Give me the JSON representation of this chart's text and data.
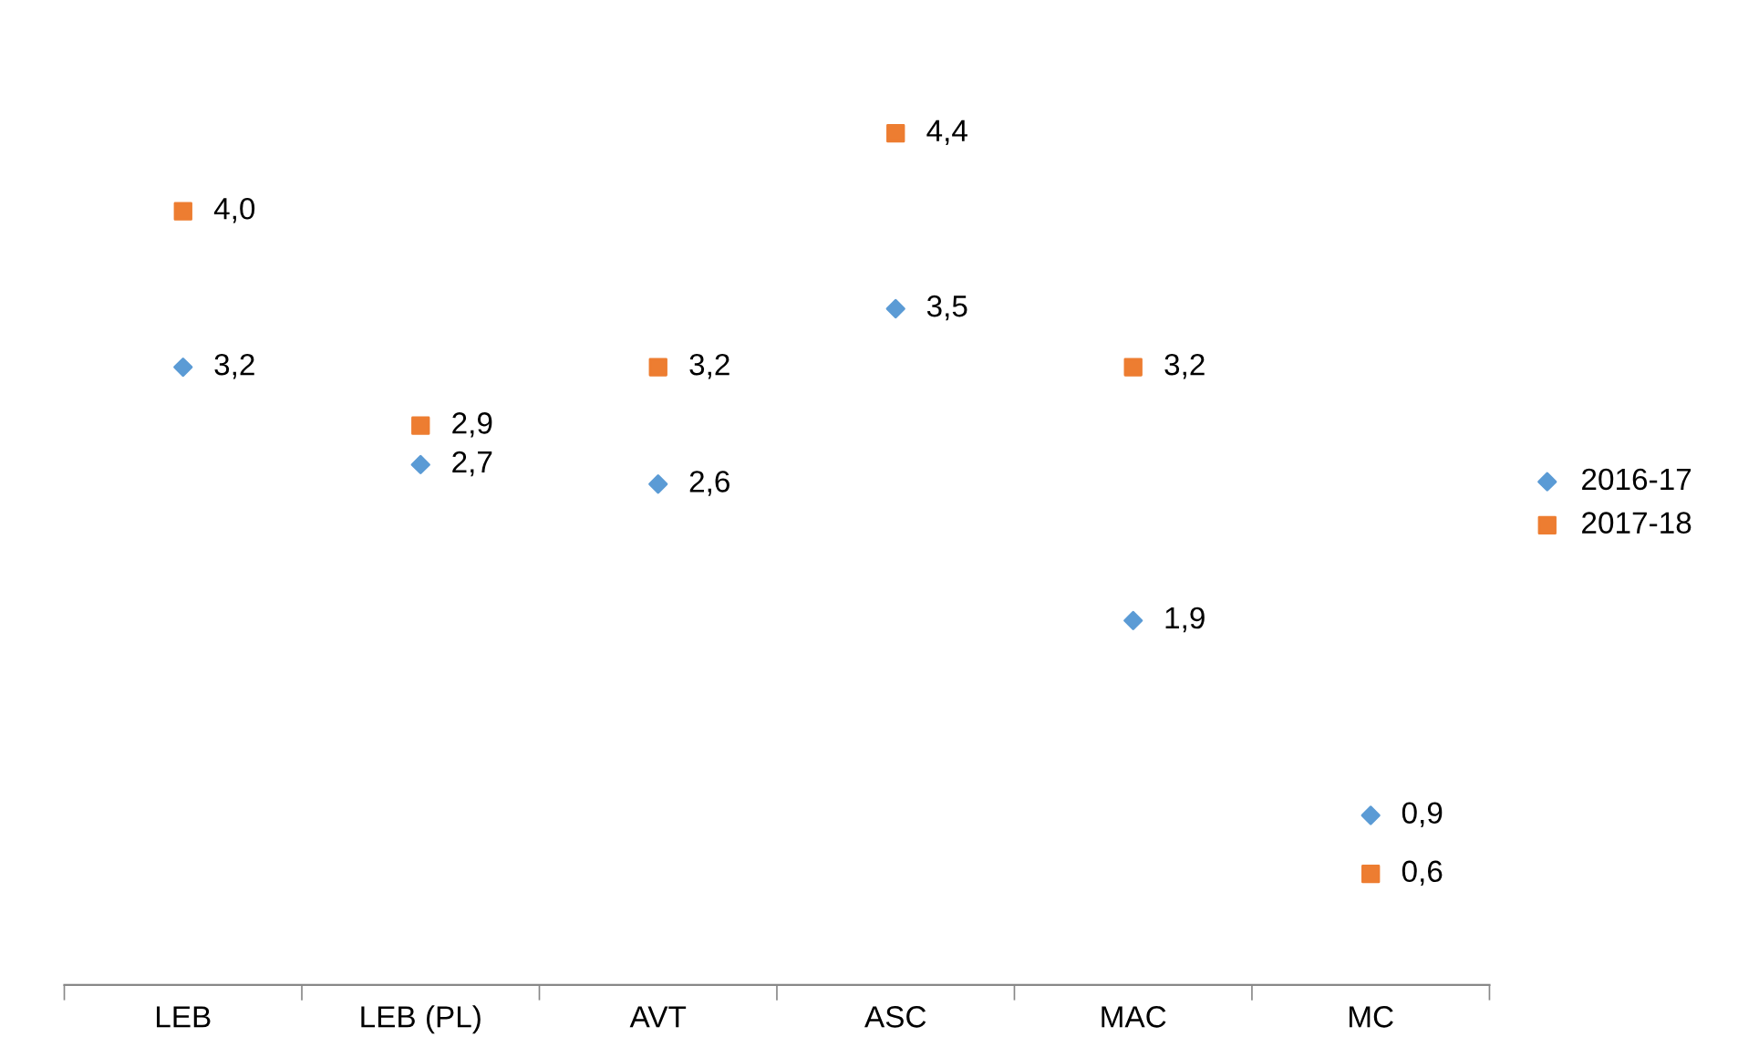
{
  "chart_data": {
    "type": "scatter",
    "categories": [
      "LEB",
      "LEB (PL)",
      "AVT",
      "ASC",
      "MAC",
      "MC"
    ],
    "series": [
      {
        "name": "2016-17",
        "color": "#5b9bd5",
        "marker": "diamond",
        "values": [
          3.2,
          2.7,
          2.6,
          3.5,
          1.9,
          0.9
        ],
        "value_labels": [
          "3,2",
          "2,7",
          "2,6",
          "3,5",
          "1,9",
          "0,9"
        ]
      },
      {
        "name": "2017-18",
        "color": "#ed7d31",
        "marker": "square",
        "values": [
          4.0,
          2.9,
          3.2,
          4.4,
          3.2,
          0.6
        ],
        "value_labels": [
          "4,0",
          "2,9",
          "3,2",
          "4,4",
          "3,2",
          "0,6"
        ]
      }
    ],
    "tick_labels": "x",
    "grid": false,
    "legend": "right"
  }
}
